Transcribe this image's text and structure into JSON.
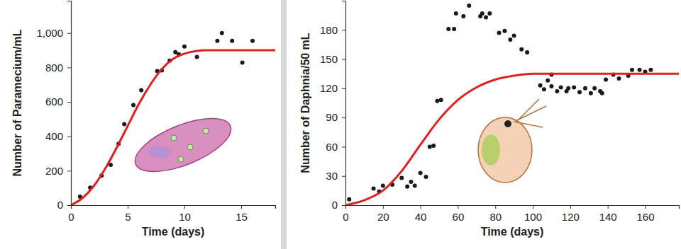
{
  "chart_data": [
    {
      "type": "scatter",
      "x_label": "Time (days)",
      "y_label": "Number of Paramecium/mL",
      "xlim": [
        0,
        18
      ],
      "ylim": [
        0,
        1188
      ],
      "xticks": [
        0,
        5,
        10,
        15
      ],
      "yticks": [
        0,
        200,
        400,
        600,
        800,
        {
          "value": 1000,
          "label": "1,000"
        }
      ],
      "grid": false,
      "series": [
        {
          "type": "scatter",
          "marker": "circle",
          "color": "#1a1a1a",
          "x": [
            0.8,
            1.7,
            2.7,
            3.5,
            4.2,
            4.7,
            5.5,
            6.2,
            7.6,
            8.0,
            8.7,
            9.2,
            9.5,
            10.0,
            11.1,
            12.9,
            13.3,
            14.2,
            15.1,
            16.0
          ],
          "values": [
            49,
            102,
            172,
            234,
            357,
            471,
            582,
            668,
            779,
            783,
            840,
            889,
            877,
            922,
            861,
            955,
            1000,
            955,
            828,
            955
          ]
        },
        {
          "type": "line",
          "line_style": "solid",
          "color": "#e0201b",
          "x": [
            0,
            1,
            2,
            3,
            4,
            5,
            6,
            7,
            8,
            9,
            10,
            11,
            12,
            13,
            14,
            15,
            16,
            17,
            18
          ],
          "values": [
            0,
            40,
            110,
            210,
            330,
            460,
            590,
            700,
            790,
            850,
            880,
            895,
            900,
            900,
            900,
            900,
            900,
            900,
            900
          ]
        }
      ]
    },
    {
      "type": "scatter",
      "x_label": "Time (days)",
      "y_label": "Number of Daphnia/50 mL",
      "xlim": [
        0,
        178
      ],
      "ylim": [
        0,
        210
      ],
      "xticks": [
        0,
        20,
        40,
        60,
        80,
        100,
        120,
        140,
        160
      ],
      "yticks": [
        0,
        30,
        60,
        90,
        120,
        150,
        180
      ],
      "grid": false,
      "series": [
        {
          "type": "scatter",
          "marker": "circle",
          "color": "#1a1a1a",
          "x": [
            2,
            15,
            18,
            20,
            25,
            30,
            33,
            35,
            37,
            40,
            43,
            45,
            47,
            49,
            51,
            55,
            58,
            59,
            63,
            66,
            72,
            73,
            75,
            77,
            82,
            85,
            88,
            90,
            94,
            97,
            104,
            106,
            108,
            110,
            110,
            113,
            115,
            118,
            119,
            122,
            125,
            128,
            131,
            133,
            136,
            137,
            139,
            143,
            146,
            151,
            153,
            157,
            160,
            163
          ],
          "values": [
            6,
            17,
            14,
            20,
            21,
            28,
            19,
            24,
            20,
            33,
            29,
            60,
            61,
            107,
            108,
            181,
            181,
            197,
            194,
            205,
            194,
            197,
            193,
            197,
            177,
            179,
            170,
            174,
            160,
            157,
            123,
            119,
            128,
            122,
            134,
            117,
            121,
            117,
            120,
            121,
            116,
            120,
            115,
            120,
            117,
            115,
            129,
            134,
            130,
            133,
            139,
            139,
            137,
            139
          ]
        },
        {
          "type": "line",
          "line_style": "solid",
          "color": "#e0201b",
          "x": [
            0,
            10,
            20,
            30,
            40,
            50,
            60,
            70,
            80,
            90,
            100,
            110,
            120,
            130,
            140,
            150,
            160,
            170,
            178
          ],
          "values": [
            0,
            5,
            15,
            35,
            62,
            88,
            108,
            121,
            129,
            133,
            135,
            135,
            135,
            135,
            135,
            135,
            135,
            135,
            135
          ]
        }
      ]
    }
  ]
}
